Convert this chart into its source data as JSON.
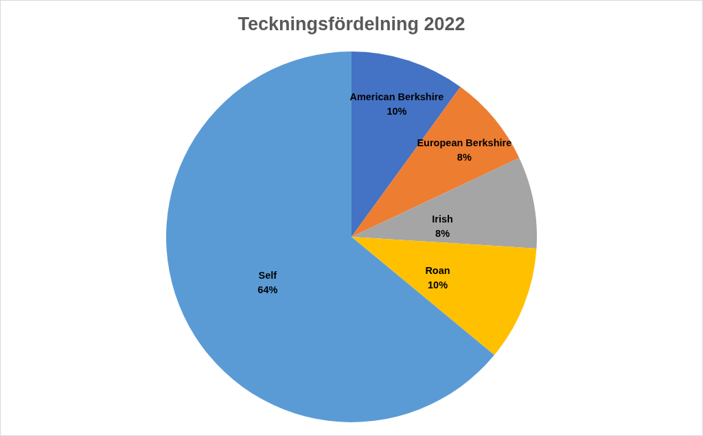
{
  "chart_data": {
    "type": "pie",
    "title": "Teckningsfördelning 2022",
    "categories": [
      "American Berkshire",
      "European Berkshire",
      "Irish",
      "Roan",
      "Self"
    ],
    "values": [
      10,
      8,
      8,
      10,
      64
    ],
    "value_labels": [
      "10%",
      "8%",
      "8%",
      "10%",
      "64%"
    ],
    "colors": [
      "#4472c4",
      "#ed7d31",
      "#a5a5a5",
      "#ffc000",
      "#5b9bd5"
    ],
    "legend": false
  }
}
